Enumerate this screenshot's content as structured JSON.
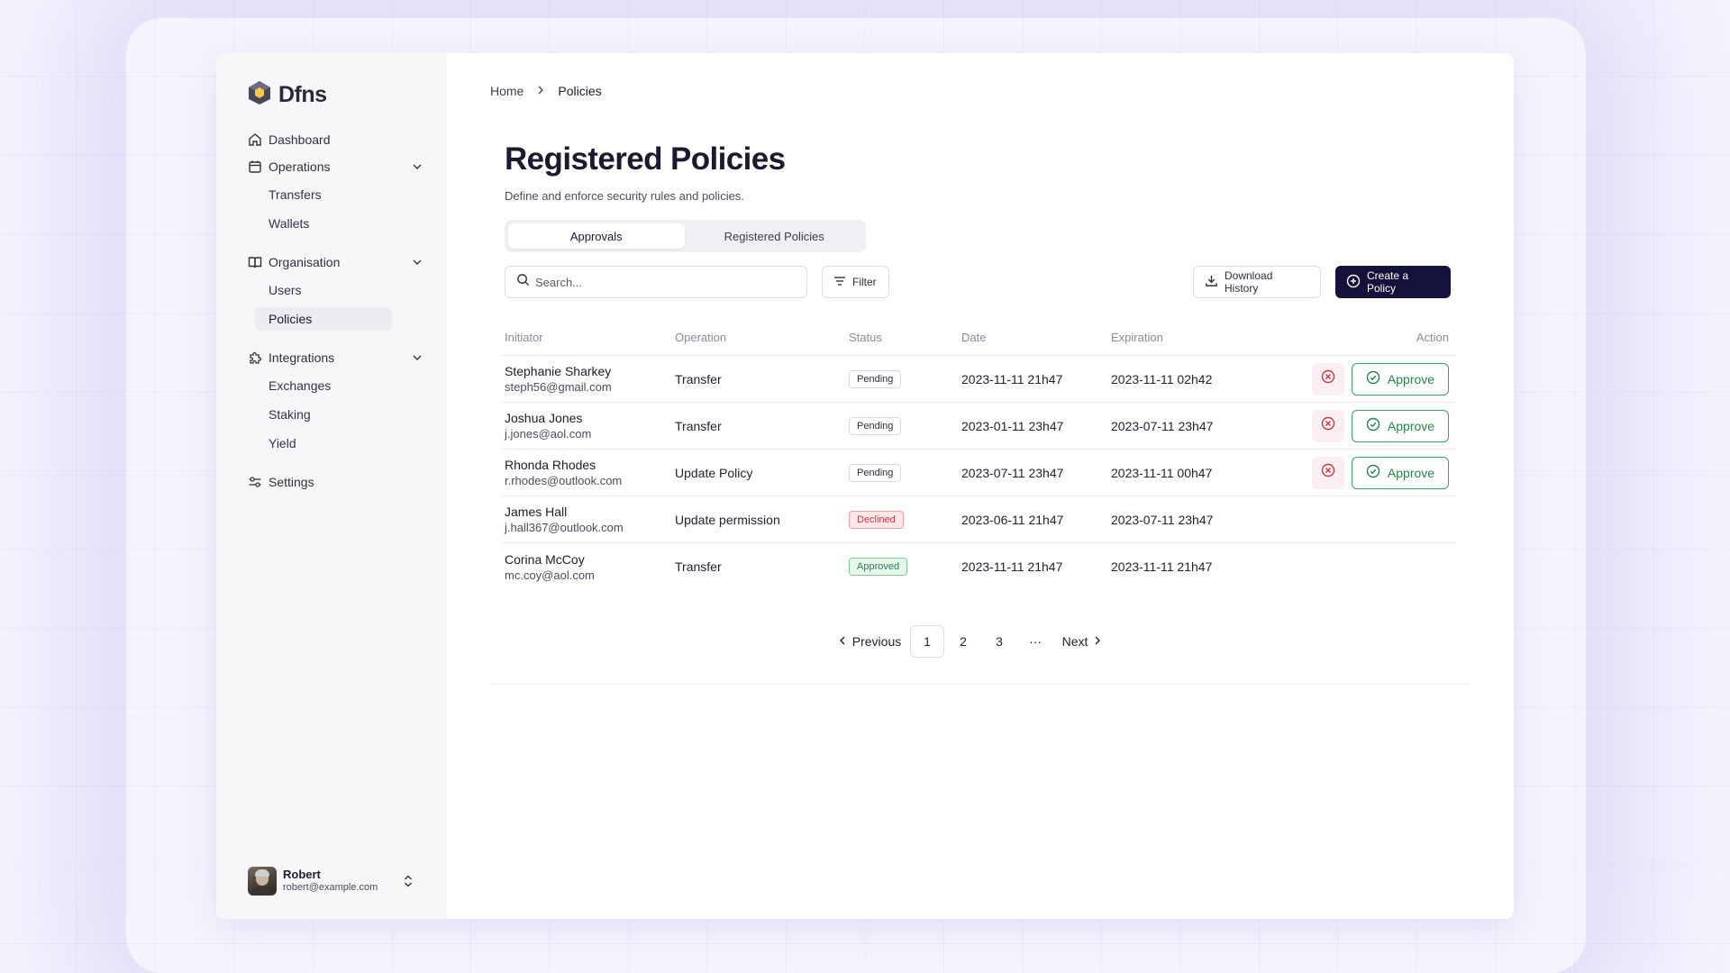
{
  "brand": {
    "name": "Dfns"
  },
  "sidebar": {
    "nav": [
      {
        "label": "Dashboard",
        "icon": "home-icon"
      },
      {
        "label": "Operations",
        "icon": "calendar-icon",
        "children": [
          "Transfers",
          "Wallets"
        ]
      },
      {
        "label": "Organisation",
        "icon": "book-icon",
        "children": [
          "Users",
          "Policies"
        ]
      },
      {
        "label": "Integrations",
        "icon": "puzzle-icon",
        "children": [
          "Exchanges",
          "Staking",
          "Yield"
        ]
      },
      {
        "label": "Settings",
        "icon": "sliders-icon"
      }
    ],
    "active_item": "Policies"
  },
  "user": {
    "name": "Robert",
    "email": "robert@example.com"
  },
  "breadcrumb": {
    "home": "Home",
    "current": "Policies"
  },
  "page": {
    "title": "Registered Policies",
    "subtitle": "Define and enforce security rules and policies."
  },
  "tabs": [
    {
      "label": "Approvals",
      "active": true
    },
    {
      "label": "Registered Policies",
      "active": false
    }
  ],
  "toolbar": {
    "search_placeholder": "Search...",
    "filter_label": "Filter",
    "download_label": "Download History",
    "create_label": "Create a Policy"
  },
  "table": {
    "headers": {
      "initiator": "Initiator",
      "operation": "Operation",
      "status": "Status",
      "date": "Date",
      "expiration": "Expiration",
      "action": "Action"
    },
    "approve_label": "Approve",
    "rows": [
      {
        "name": "Stephanie Sharkey",
        "email": "steph56@gmail.com",
        "operation": "Transfer",
        "status": "Pending",
        "date": "2023-11-11 21h47",
        "expiration": "2023-11-11 02h42",
        "actions": true
      },
      {
        "name": "Joshua Jones",
        "email": "j.jones@aol.com",
        "operation": "Transfer",
        "status": "Pending",
        "date": "2023-01-11 23h47",
        "expiration": "2023-07-11 23h47",
        "actions": true
      },
      {
        "name": "Rhonda Rhodes",
        "email": "r.rhodes@outlook.com",
        "operation": "Update Policy",
        "status": "Pending",
        "date": "2023-07-11 23h47",
        "expiration": "2023-11-11 00h47",
        "actions": true
      },
      {
        "name": "James Hall",
        "email": "j.hall367@outlook.com",
        "operation": "Update permission",
        "status": "Declined",
        "date": "2023-06-11 21h47",
        "expiration": "2023-07-11 23h47",
        "actions": false
      },
      {
        "name": "Corina McCoy",
        "email": "mc.coy@aol.com",
        "operation": "Transfer",
        "status": "Approved",
        "date": "2023-11-11 21h47",
        "expiration": "2023-11-11 21h47",
        "actions": false
      }
    ]
  },
  "pagination": {
    "previous_label": "Previous",
    "pages": [
      "1",
      "2",
      "3"
    ],
    "ellipsis": "···",
    "next_label": "Next",
    "current": "1"
  },
  "colors": {
    "primary": "#14123a",
    "approve": "#22874a",
    "decline": "#c93a46",
    "sidebar_bg": "#f7f7f9"
  }
}
